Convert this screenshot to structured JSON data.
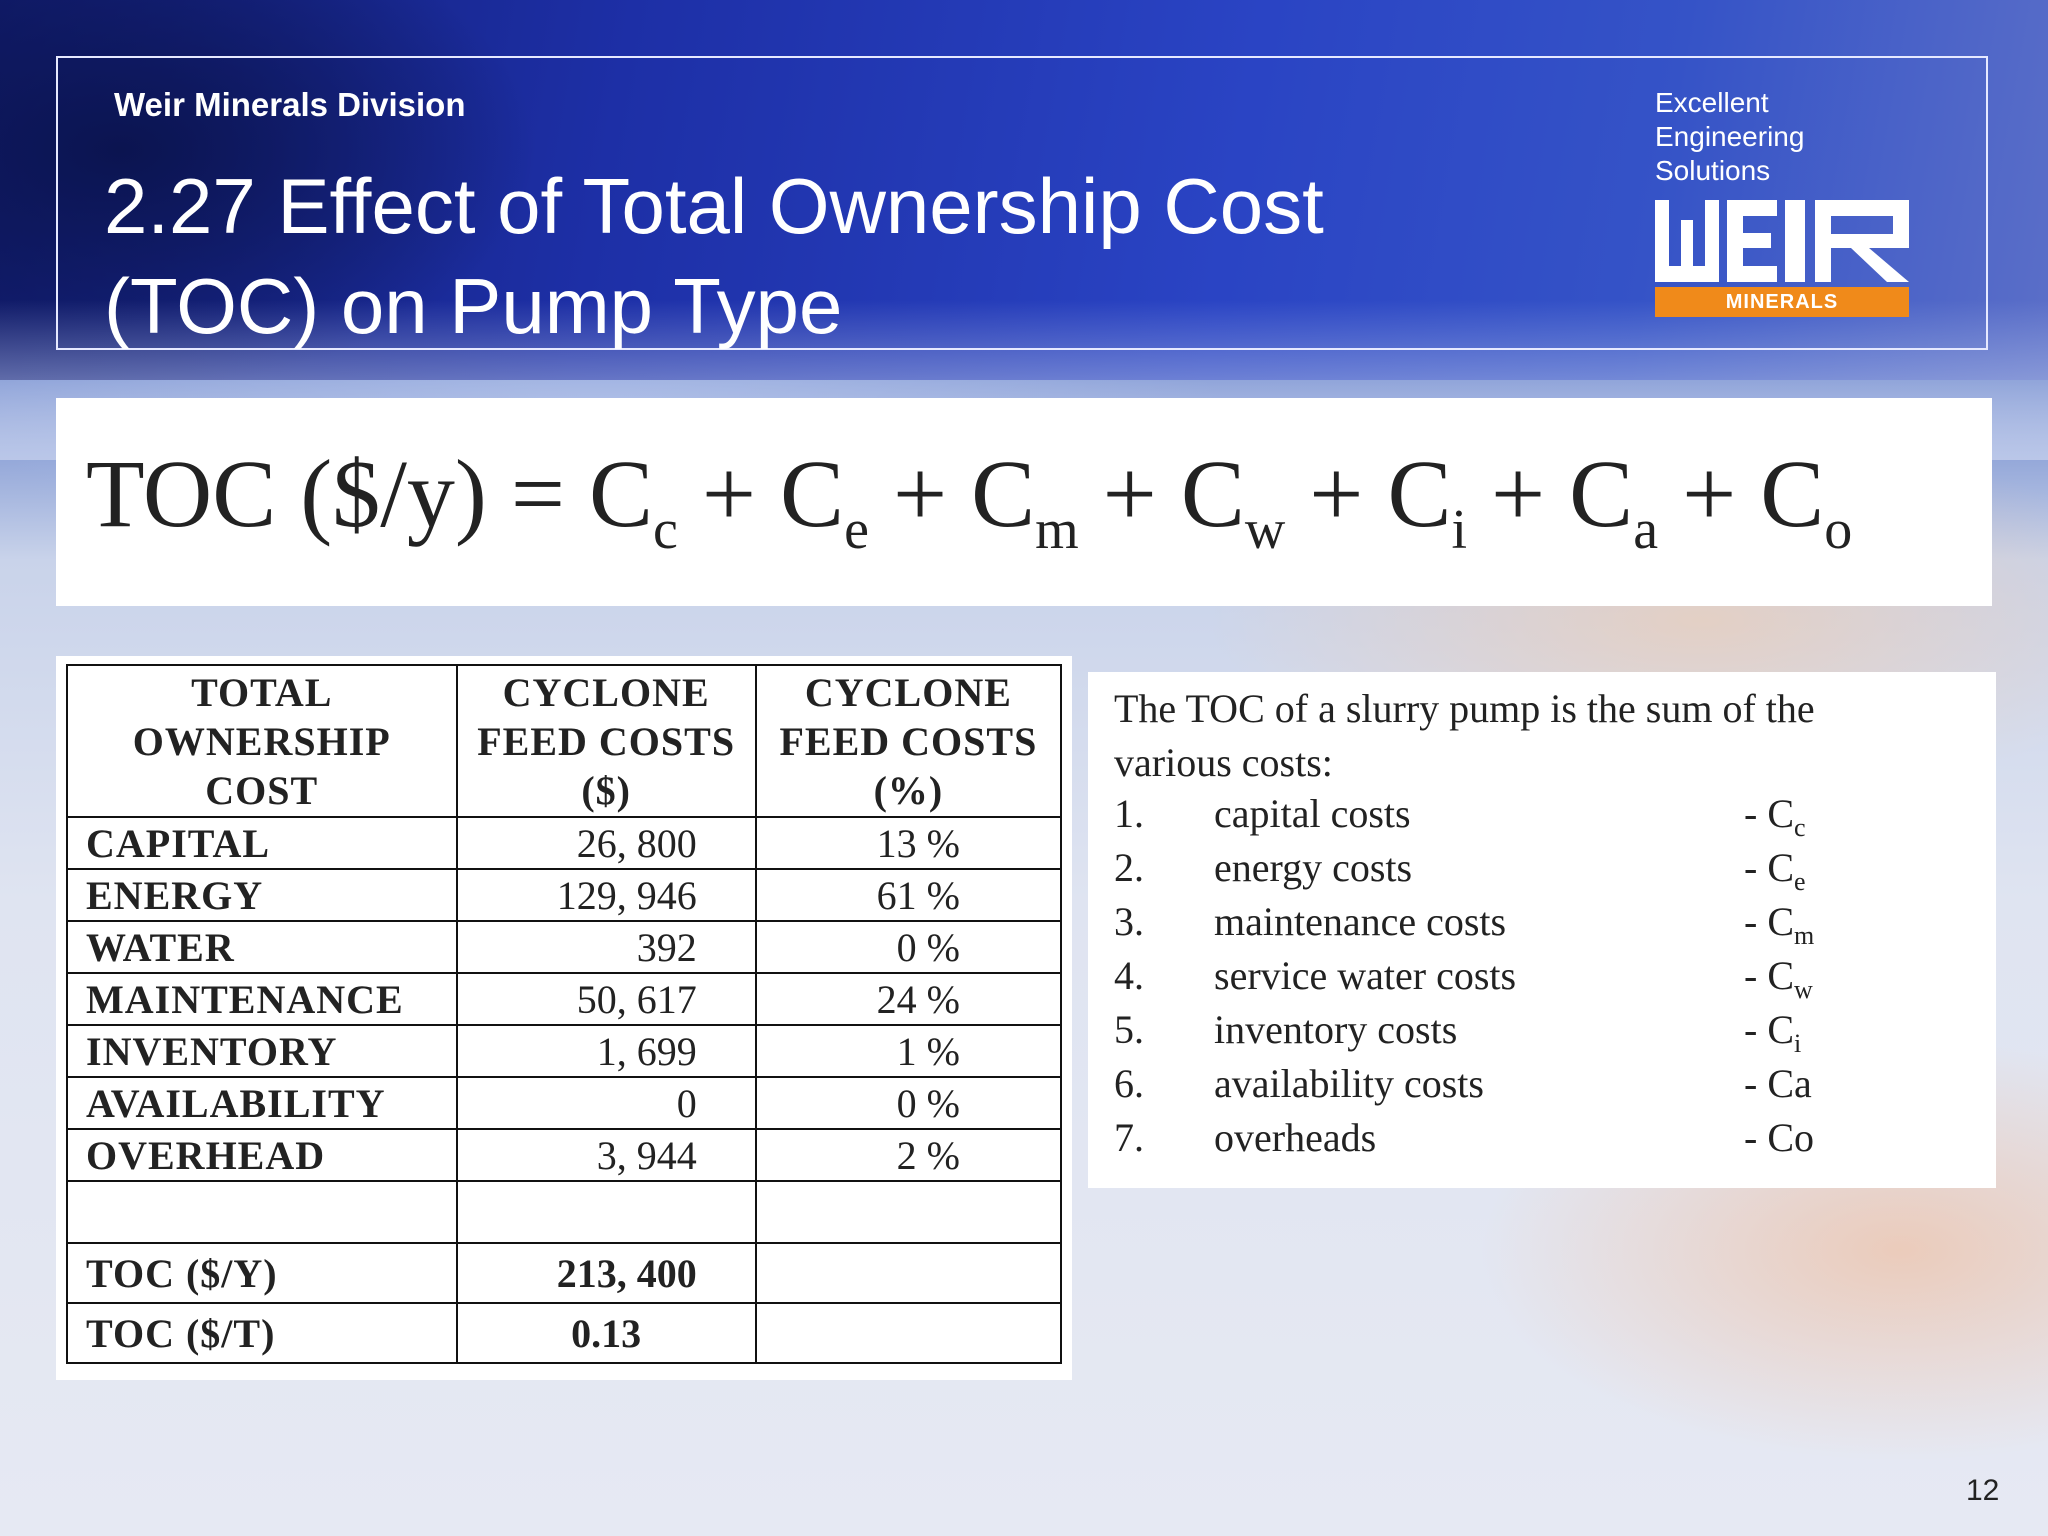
{
  "header": {
    "division": "Weir Minerals Division",
    "title_line1": "2.27 Effect of Total Ownership Cost",
    "title_line2": "(TOC) on Pump Type",
    "tagline": [
      "Excellent",
      "Engineering",
      "Solutions"
    ],
    "logo_text": "WEIR",
    "logo_sub": "MINERALS",
    "logo_accent": "#f08a1a"
  },
  "formula": {
    "lhs": "TOC ($/y) = ",
    "terms": [
      {
        "base": "C",
        "sub": "c"
      },
      {
        "base": "C",
        "sub": "e"
      },
      {
        "base": "C",
        "sub": "m"
      },
      {
        "base": "C",
        "sub": "w"
      },
      {
        "base": "C",
        "sub": "i"
      },
      {
        "base": "C",
        "sub": "a"
      },
      {
        "base": "C",
        "sub": "o"
      }
    ],
    "plus": " + "
  },
  "table": {
    "headers": [
      "TOTAL OWNERSHIP COST",
      "CYCLONE FEED COSTS ($)",
      "CYCLONE FEED COSTS (%)"
    ],
    "rows": [
      {
        "label": "CAPITAL",
        "cost": "26, 800",
        "pct": "13 %"
      },
      {
        "label": "ENERGY",
        "cost": "129, 946",
        "pct": "61 %"
      },
      {
        "label": "WATER",
        "cost": "392",
        "pct": "0 %"
      },
      {
        "label": "MAINTENANCE",
        "cost": "50, 617",
        "pct": "24 %"
      },
      {
        "label": "INVENTORY",
        "cost": "1, 699",
        "pct": "1 %"
      },
      {
        "label": "AVAILABILITY",
        "cost": "0",
        "pct": "0 %"
      },
      {
        "label": "OVERHEAD",
        "cost": "3, 944",
        "pct": "2 %"
      }
    ],
    "totals": [
      {
        "label": "TOC ($/Y)",
        "value": "213, 400"
      },
      {
        "label": "TOC ($/T)",
        "value": "0.13"
      }
    ]
  },
  "list": {
    "intro_line1": "The TOC of a slurry pump is the sum of the",
    "intro_line2": "various costs:",
    "items": [
      {
        "num": "1.",
        "text": "capital costs",
        "sym": "- C",
        "sub": "c"
      },
      {
        "num": "2.",
        "text": "energy costs",
        "sym": "- C",
        "sub": "e"
      },
      {
        "num": "3.",
        "text": "maintenance costs",
        "sym": "- C",
        "sub": "m"
      },
      {
        "num": "4.",
        "text": "service water costs",
        "sym": "- C",
        "sub": "w"
      },
      {
        "num": "5.",
        "text": "inventory costs",
        "sym": "- C",
        "sub": "i"
      },
      {
        "num": "6.",
        "text": "availability costs",
        "sym": "- Ca",
        "sub": ""
      },
      {
        "num": "7.",
        "text": "overheads",
        "sym": "- Co",
        "sub": ""
      }
    ]
  },
  "page_number": "12"
}
